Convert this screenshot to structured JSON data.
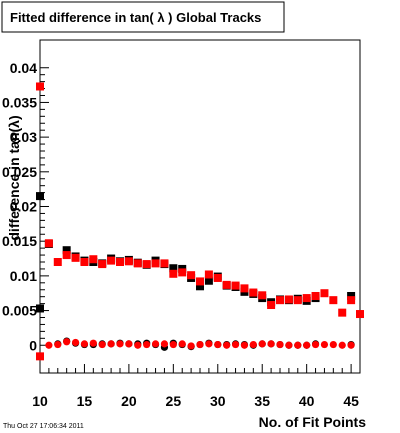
{
  "title": "Fitted difference in tan( λ )  Global Tracks",
  "timestamp": "Thu Oct 27 17:06:34 2011",
  "chart_data": {
    "type": "scatter",
    "title": "Fitted difference in tan( λ )  Global Tracks",
    "xlabel": "No. of Fit Points",
    "ylabel": "difference in tan(λ)",
    "xlim": [
      10,
      46
    ],
    "ylim": [
      -0.004,
      0.044
    ],
    "grid": false,
    "x_ticks": [
      10,
      15,
      20,
      25,
      30,
      35,
      40,
      45
    ],
    "x_tick_labels": [
      "10",
      "15",
      "20",
      "25",
      "30",
      "35",
      "40",
      "45"
    ],
    "y_ticks": [
      0,
      0.005,
      0.01,
      0.015,
      0.02,
      0.025,
      0.03,
      0.035,
      0.04
    ],
    "y_tick_labels": [
      "0",
      "0.005",
      "0.01",
      "0.015",
      "0.02",
      "0.025",
      "0.03",
      "0.035",
      "0.04"
    ],
    "series": [
      {
        "color": "#000000",
        "points": [
          [
            10,
            0.0215
          ],
          [
            10,
            0.0053
          ],
          [
            11,
            0.0146
          ],
          [
            13,
            0.0137
          ],
          [
            14,
            0.0128
          ],
          [
            15,
            0.0122
          ],
          [
            16,
            0.012
          ],
          [
            17,
            0.0118
          ],
          [
            18,
            0.0125
          ],
          [
            19,
            0.0121
          ],
          [
            20,
            0.0123
          ],
          [
            21,
            0.0119
          ],
          [
            22,
            0.0116
          ],
          [
            23,
            0.0122
          ],
          [
            24,
            0.0117
          ],
          [
            25,
            0.0111
          ],
          [
            26,
            0.011
          ],
          [
            27,
            0.0097
          ],
          [
            28,
            0.0085
          ],
          [
            29,
            0.0093
          ],
          [
            30,
            0.0099
          ],
          [
            31,
            0.0086
          ],
          [
            32,
            0.0084
          ],
          [
            33,
            0.0077
          ],
          [
            34,
            0.0074
          ],
          [
            35,
            0.0068
          ],
          [
            36,
            0.0062
          ],
          [
            37,
            0.0066
          ],
          [
            38,
            0.0065
          ],
          [
            39,
            0.0067
          ],
          [
            40,
            0.0064
          ],
          [
            41,
            0.0068
          ],
          [
            45,
            0.0071
          ],
          [
            12,
            0.0002
          ],
          [
            13,
            0.0006
          ],
          [
            14,
            0.0003
          ],
          [
            15,
            0.0001
          ],
          [
            16,
            0.0001
          ],
          [
            17,
            0.0002
          ],
          [
            18,
            0.0002
          ],
          [
            19,
            0.0003
          ],
          [
            20,
            0.0002
          ],
          [
            21,
            0.0002
          ],
          [
            22,
            0.0003
          ],
          [
            23,
            0.0001
          ],
          [
            24,
            -0.0003
          ],
          [
            25,
            0.0003
          ],
          [
            26,
            0.0001
          ],
          [
            27,
            -0.0002
          ],
          [
            28,
            0.0001
          ],
          [
            29,
            0.0003
          ],
          [
            30,
            0.0001
          ],
          [
            31,
            0.0001
          ],
          [
            32,
            0.0002
          ],
          [
            33,
            0.0001
          ],
          [
            34,
            0.0
          ],
          [
            35,
            0.0002
          ],
          [
            36,
            0.0002
          ],
          [
            37,
            0.0001
          ],
          [
            38,
            0.0
          ],
          [
            39,
            0.0
          ],
          [
            40,
            0.0
          ],
          [
            41,
            0.0002
          ],
          [
            45,
            0.0001
          ]
        ]
      },
      {
        "color": "#ff0000",
        "points": [
          [
            10,
            0.0373
          ],
          [
            10,
            -0.0016
          ],
          [
            11,
            0.0147
          ],
          [
            12,
            0.012
          ],
          [
            13,
            0.013
          ],
          [
            14,
            0.0126
          ],
          [
            15,
            0.012
          ],
          [
            16,
            0.0124
          ],
          [
            17,
            0.0117
          ],
          [
            18,
            0.0122
          ],
          [
            19,
            0.012
          ],
          [
            20,
            0.0121
          ],
          [
            21,
            0.0118
          ],
          [
            22,
            0.0117
          ],
          [
            23,
            0.0118
          ],
          [
            24,
            0.0118
          ],
          [
            25,
            0.0103
          ],
          [
            26,
            0.0105
          ],
          [
            27,
            0.0101
          ],
          [
            28,
            0.0092
          ],
          [
            29,
            0.0102
          ],
          [
            30,
            0.0097
          ],
          [
            31,
            0.0087
          ],
          [
            32,
            0.0086
          ],
          [
            33,
            0.0082
          ],
          [
            34,
            0.0076
          ],
          [
            35,
            0.0072
          ],
          [
            36,
            0.0058
          ],
          [
            37,
            0.0065
          ],
          [
            38,
            0.0066
          ],
          [
            39,
            0.0065
          ],
          [
            40,
            0.0068
          ],
          [
            41,
            0.0071
          ],
          [
            42,
            0.0075
          ],
          [
            43,
            0.0065
          ],
          [
            44,
            0.0047
          ],
          [
            45,
            0.0065
          ],
          [
            46,
            0.0045
          ],
          [
            11,
            0.0
          ],
          [
            12,
            0.0001
          ],
          [
            13,
            0.0005
          ],
          [
            14,
            0.0004
          ],
          [
            15,
            0.0002
          ],
          [
            16,
            0.0003
          ],
          [
            17,
            0.0001
          ],
          [
            18,
            0.0002
          ],
          [
            19,
            0.0002
          ],
          [
            20,
            0.0002
          ],
          [
            21,
            0.0
          ],
          [
            22,
            0.0001
          ],
          [
            23,
            0.0002
          ],
          [
            24,
            0.0002
          ],
          [
            25,
            0.0001
          ],
          [
            26,
            0.0002
          ],
          [
            27,
            -0.0001
          ],
          [
            28,
            0.0001
          ],
          [
            29,
            0.0002
          ],
          [
            30,
            0.0001
          ],
          [
            31,
            0.0
          ],
          [
            32,
            0.0001
          ],
          [
            33,
            0.0
          ],
          [
            34,
            0.0001
          ],
          [
            35,
            0.0002
          ],
          [
            36,
            0.0002
          ],
          [
            37,
            0.0001
          ],
          [
            38,
            0.0
          ],
          [
            39,
            0.0
          ],
          [
            40,
            0.0
          ],
          [
            41,
            0.0001
          ],
          [
            42,
            0.0001
          ],
          [
            43,
            0.0001
          ],
          [
            44,
            0.0
          ],
          [
            45,
            0.0
          ]
        ]
      }
    ]
  }
}
